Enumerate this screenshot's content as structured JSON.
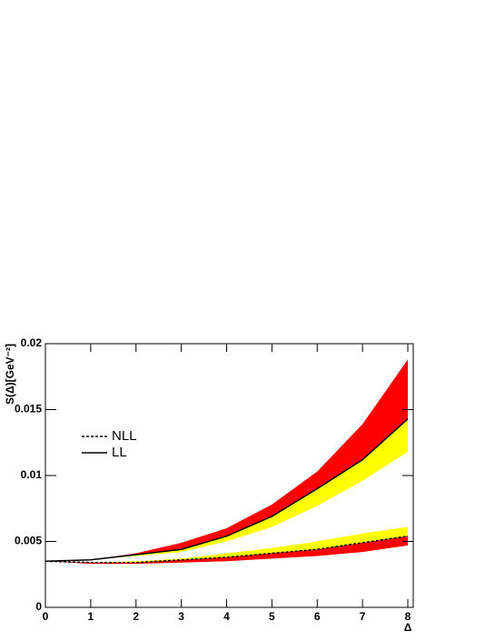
{
  "chart_data": {
    "type": "line",
    "x_label": "Δ",
    "y_label": "S(Δ)[GeV⁻²]",
    "x": [
      0,
      1,
      2,
      3,
      4,
      5,
      6,
      7,
      8
    ],
    "series": [
      {
        "name": "NLL",
        "color": "#000000",
        "dash": true,
        "values": [
          0.0035,
          0.0034,
          0.0034,
          0.0036,
          0.0038,
          0.0041,
          0.0044,
          0.0049,
          0.0054
        ]
      },
      {
        "name": "LL",
        "color": "#000000",
        "dash": false,
        "values": [
          0.0035,
          0.0036,
          0.004,
          0.0044,
          0.0054,
          0.0069,
          0.009,
          0.0112,
          0.0143
        ]
      }
    ],
    "bands": [
      {
        "color": "#ffff00",
        "upper": [
          0.0035,
          0.0034,
          0.0035,
          0.0037,
          0.0041,
          0.0045,
          0.005,
          0.0056,
          0.0061
        ],
        "lower": [
          0.0035,
          0.0034,
          0.0034,
          0.0036,
          0.0038,
          0.0041,
          0.0044,
          0.0049,
          0.0054
        ]
      },
      {
        "color": "#ff0000",
        "upper": [
          0.0035,
          0.0034,
          0.0034,
          0.0036,
          0.0038,
          0.0041,
          0.0044,
          0.0049,
          0.0054
        ],
        "lower": [
          0.0035,
          0.0033,
          0.0033,
          0.0034,
          0.0035,
          0.0037,
          0.0039,
          0.0042,
          0.0047
        ]
      },
      {
        "color": "#ff0000",
        "upper": [
          0.0035,
          0.0036,
          0.0041,
          0.0049,
          0.006,
          0.0078,
          0.0103,
          0.0139,
          0.0188
        ],
        "lower": [
          0.0035,
          0.0036,
          0.004,
          0.0044,
          0.0054,
          0.0069,
          0.009,
          0.0112,
          0.0143
        ]
      },
      {
        "color": "#ffff00",
        "upper": [
          0.0035,
          0.0036,
          0.004,
          0.0044,
          0.0054,
          0.0069,
          0.009,
          0.0112,
          0.0143
        ],
        "lower": [
          0.0035,
          0.0036,
          0.0039,
          0.0042,
          0.005,
          0.0061,
          0.0077,
          0.0096,
          0.0118
        ]
      }
    ],
    "xlim": [
      0,
      8.12
    ],
    "ylim": [
      0,
      0.02
    ],
    "xticks": [
      0,
      1,
      2,
      3,
      4,
      5,
      6,
      7,
      8
    ],
    "yticks": [
      0,
      0.005,
      0.01,
      0.015,
      0.02
    ],
    "legend": "upper-left"
  }
}
